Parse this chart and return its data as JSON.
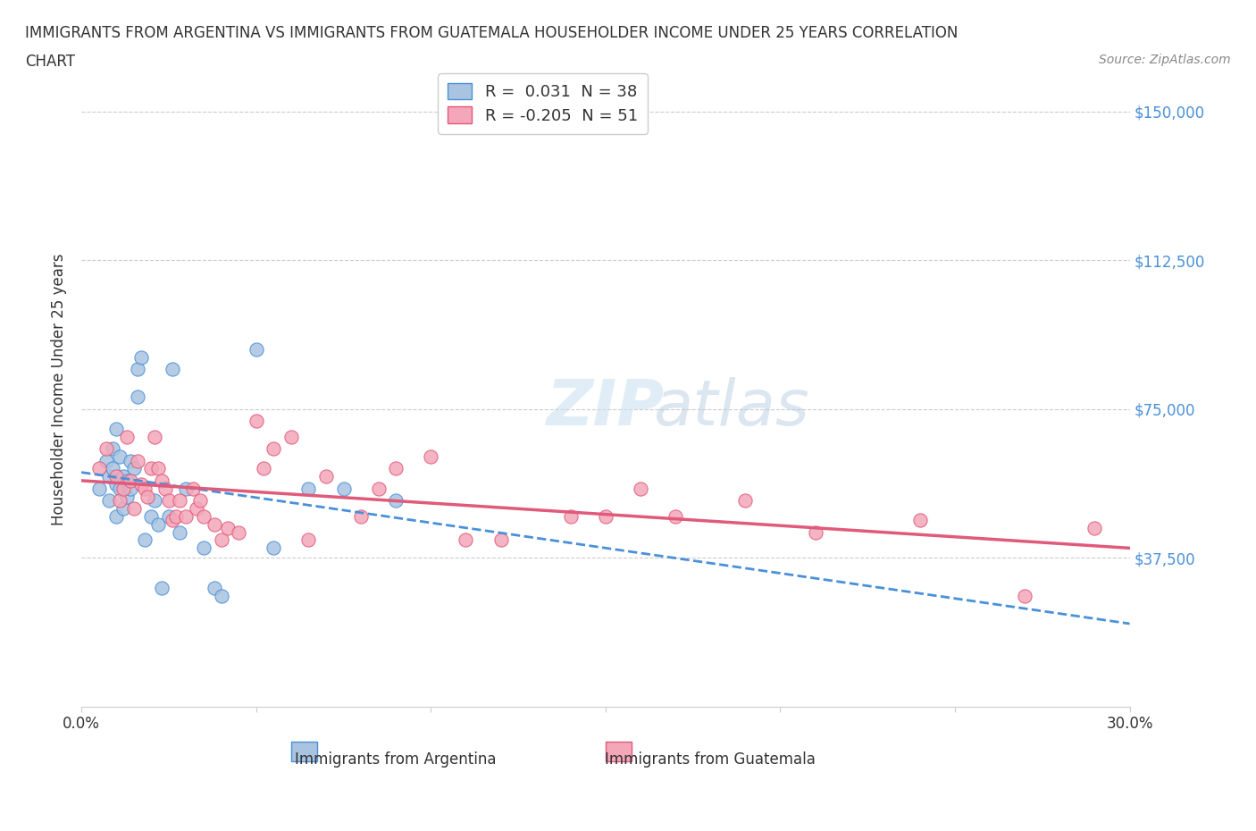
{
  "title_line1": "IMMIGRANTS FROM ARGENTINA VS IMMIGRANTS FROM GUATEMALA HOUSEHOLDER INCOME UNDER 25 YEARS CORRELATION",
  "title_line2": "CHART",
  "source_text": "Source: ZipAtlas.com",
  "xlabel": "",
  "ylabel": "Householder Income Under 25 years",
  "xlim": [
    0.0,
    0.3
  ],
  "ylim": [
    0,
    160000
  ],
  "yticks": [
    0,
    37500,
    75000,
    112500,
    150000
  ],
  "ytick_labels": [
    "",
    "$37,500",
    "$75,000",
    "$112,500",
    "$150,000"
  ],
  "xticks": [
    0.0,
    0.05,
    0.1,
    0.15,
    0.2,
    0.25,
    0.3
  ],
  "xtick_labels": [
    "0.0%",
    "",
    "",
    "",
    "",
    "",
    "30.0%"
  ],
  "argentina_color": "#a8c4e0",
  "guatemala_color": "#f4a7b9",
  "argentina_line_color": "#4a90d9",
  "guatemala_line_color": "#e05a7a",
  "argentina_r": 0.031,
  "argentina_n": 38,
  "guatemala_r": -0.205,
  "guatemala_n": 51,
  "watermark": "ZIPatlas",
  "argentina_x": [
    0.005,
    0.007,
    0.008,
    0.008,
    0.009,
    0.009,
    0.01,
    0.01,
    0.01,
    0.011,
    0.011,
    0.012,
    0.012,
    0.013,
    0.013,
    0.014,
    0.014,
    0.015,
    0.016,
    0.016,
    0.017,
    0.018,
    0.02,
    0.021,
    0.022,
    0.023,
    0.025,
    0.026,
    0.028,
    0.03,
    0.035,
    0.038,
    0.04,
    0.05,
    0.055,
    0.065,
    0.075,
    0.09
  ],
  "argentina_y": [
    55000,
    62000,
    58000,
    52000,
    65000,
    60000,
    56000,
    48000,
    70000,
    63000,
    55000,
    58000,
    50000,
    57000,
    53000,
    62000,
    55000,
    60000,
    85000,
    78000,
    88000,
    42000,
    48000,
    52000,
    46000,
    30000,
    48000,
    85000,
    44000,
    55000,
    40000,
    30000,
    28000,
    90000,
    40000,
    55000,
    55000,
    52000
  ],
  "guatemala_x": [
    0.005,
    0.007,
    0.01,
    0.011,
    0.012,
    0.013,
    0.014,
    0.015,
    0.016,
    0.017,
    0.018,
    0.019,
    0.02,
    0.021,
    0.022,
    0.023,
    0.024,
    0.025,
    0.026,
    0.027,
    0.028,
    0.03,
    0.032,
    0.033,
    0.034,
    0.035,
    0.038,
    0.04,
    0.042,
    0.045,
    0.05,
    0.052,
    0.055,
    0.06,
    0.065,
    0.07,
    0.08,
    0.085,
    0.09,
    0.1,
    0.11,
    0.12,
    0.14,
    0.15,
    0.16,
    0.17,
    0.19,
    0.21,
    0.24,
    0.27,
    0.29
  ],
  "guatemala_y": [
    60000,
    65000,
    58000,
    52000,
    55000,
    68000,
    57000,
    50000,
    62000,
    56000,
    55000,
    53000,
    60000,
    68000,
    60000,
    57000,
    55000,
    52000,
    47000,
    48000,
    52000,
    48000,
    55000,
    50000,
    52000,
    48000,
    46000,
    42000,
    45000,
    44000,
    72000,
    60000,
    65000,
    68000,
    42000,
    58000,
    48000,
    55000,
    60000,
    63000,
    42000,
    42000,
    48000,
    48000,
    55000,
    48000,
    52000,
    44000,
    47000,
    28000,
    45000
  ]
}
